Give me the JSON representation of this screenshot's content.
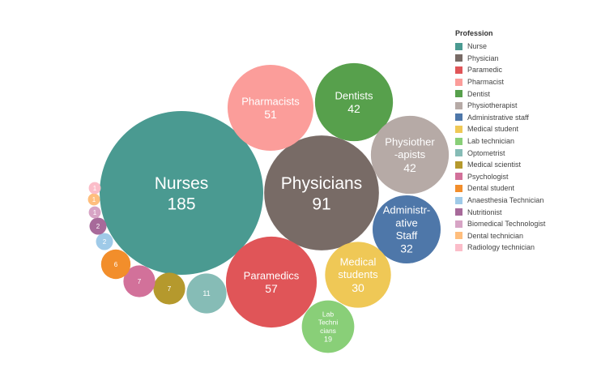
{
  "chart_data": {
    "type": "bubble",
    "legend_title": "Profession",
    "legend_position": "right",
    "series": [
      {
        "name": "Nurse",
        "label": "Nurses",
        "value": 185,
        "color": "#4a9a91"
      },
      {
        "name": "Physician",
        "label": "Physicians",
        "value": 91,
        "color": "#786b66"
      },
      {
        "name": "Paramedic",
        "label": "Paramedics",
        "value": 57,
        "color": "#e05558"
      },
      {
        "name": "Pharmacist",
        "label": "Pharmacists",
        "value": 51,
        "color": "#fb9d9a"
      },
      {
        "name": "Dentist",
        "label": "Dentists",
        "value": 42,
        "color": "#57a04c"
      },
      {
        "name": "Physiotherapist",
        "label": "Physiother\n-apists",
        "value": 42,
        "color": "#b6aaa6"
      },
      {
        "name": "Administrative staff",
        "label": "Administr-\native\nStaff",
        "value": 32,
        "color": "#4e77a9"
      },
      {
        "name": "Medical student",
        "label": "Medical\nstudents",
        "value": 30,
        "color": "#efc856"
      },
      {
        "name": "Lab technician",
        "label": "Lab\nTechni\ncians",
        "value": 19,
        "color": "#89cf78"
      },
      {
        "name": "Optometrist",
        "label": "",
        "value": 11,
        "color": "#86bcb6"
      },
      {
        "name": "Medical scientist",
        "label": "",
        "value": 7,
        "color": "#b5992d"
      },
      {
        "name": "Psychologist",
        "label": "",
        "value": 7,
        "color": "#d2719a"
      },
      {
        "name": "Dental student",
        "label": "",
        "value": 6,
        "color": "#f28e2b"
      },
      {
        "name": "Anaesthesia Technician",
        "label": "",
        "value": 2,
        "color": "#9fcae8"
      },
      {
        "name": "Nutritionist",
        "label": "",
        "value": 2,
        "color": "#a76a9a"
      },
      {
        "name": "Biomedical Technologist",
        "label": "",
        "value": 1,
        "color": "#d7a4c5"
      },
      {
        "name": "Dental technician",
        "label": "",
        "value": 1,
        "color": "#ffbe7d"
      },
      {
        "name": "Radiology technician",
        "label": "",
        "value": 1,
        "color": "#fbbdc9"
      }
    ]
  }
}
